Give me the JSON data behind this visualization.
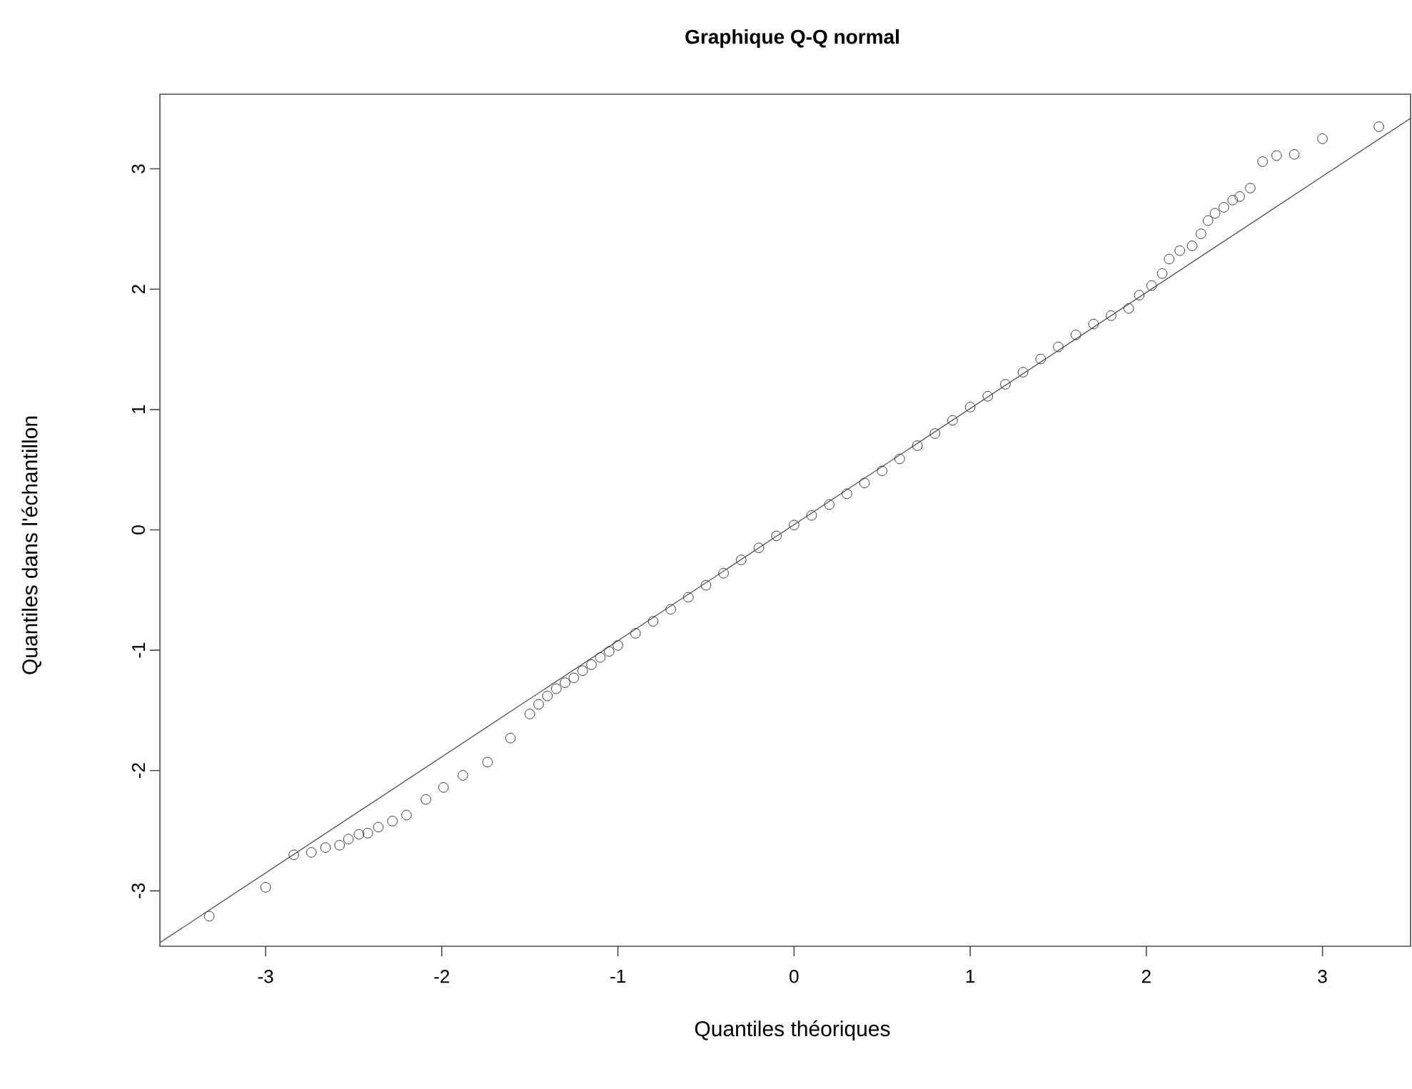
{
  "chart_data": {
    "type": "scatter",
    "title": "Graphique Q-Q normal",
    "xlabel": "Quantiles théoriques",
    "ylabel": "Quantiles dans l'échantillon",
    "xlim": [
      -3.6,
      3.5
    ],
    "ylim": [
      -3.46,
      3.62
    ],
    "xticks": [
      -3,
      -2,
      -1,
      0,
      1,
      2,
      3
    ],
    "yticks": [
      -3,
      -2,
      -1,
      0,
      1,
      2,
      3
    ],
    "marker": "circle",
    "series": [
      {
        "color": "#333333",
        "x": [
          -3.32,
          -3.0,
          -2.84,
          -2.74,
          -2.66,
          -2.58,
          -2.53,
          -2.47,
          -2.42,
          -2.36,
          -2.28,
          -2.2,
          -2.09,
          -1.99,
          -1.88,
          -1.74,
          -1.61,
          -1.5,
          -1.45,
          -1.4,
          -1.35,
          -1.3,
          -1.25,
          -1.2,
          -1.15,
          -1.1,
          -1.05,
          -1.0,
          -0.9,
          -0.8,
          -0.7,
          -0.6,
          -0.5,
          -0.4,
          -0.3,
          -0.2,
          -0.1,
          0,
          0.1,
          0.2,
          0.3,
          0.4,
          0.5,
          0.6,
          0.7,
          0.8,
          0.9,
          1.0,
          1.1,
          1.2,
          1.3,
          1.4,
          1.5,
          1.6,
          1.7,
          1.8,
          1.9,
          1.96,
          2.03,
          2.09,
          2.13,
          2.19,
          2.26,
          2.31,
          2.35,
          2.39,
          2.44,
          2.49,
          2.53,
          2.59,
          2.66,
          2.74,
          2.84,
          3.0,
          3.32
        ],
        "values": [
          -3.21,
          -2.97,
          -2.7,
          -2.68,
          -2.64,
          -2.62,
          -2.57,
          -2.53,
          -2.52,
          -2.47,
          -2.42,
          -2.37,
          -2.24,
          -2.14,
          -2.04,
          -1.93,
          -1.73,
          -1.53,
          -1.45,
          -1.38,
          -1.32,
          -1.27,
          -1.23,
          -1.17,
          -1.12,
          -1.06,
          -1.01,
          -0.96,
          -0.86,
          -0.76,
          -0.66,
          -0.56,
          -0.46,
          -0.36,
          -0.25,
          -0.15,
          -0.05,
          0.04,
          0.12,
          0.21,
          0.3,
          0.39,
          0.49,
          0.59,
          0.7,
          0.8,
          0.91,
          1.02,
          1.11,
          1.21,
          1.31,
          1.42,
          1.52,
          1.62,
          1.71,
          1.78,
          1.84,
          1.95,
          2.03,
          2.13,
          2.25,
          2.32,
          2.36,
          2.46,
          2.57,
          2.63,
          2.68,
          2.74,
          2.77,
          2.84,
          3.06,
          3.11,
          3.12,
          3.25,
          3.35
        ]
      },
      {
        "type": "line",
        "color": "#444444",
        "marker": "none",
        "line_style": "solid",
        "x": [
          -3.6,
          3.5
        ],
        "values": [
          -3.43,
          3.42
        ]
      }
    ]
  }
}
